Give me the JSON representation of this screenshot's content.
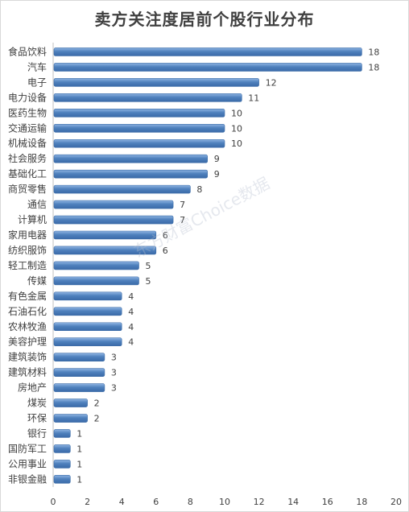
{
  "chart_data": {
    "type": "bar",
    "orientation": "horizontal",
    "title": "卖方关注度居前个股行业分布",
    "categories": [
      "食品饮料",
      "汽车",
      "电子",
      "电力设备",
      "医药生物",
      "交通运输",
      "机械设备",
      "社会服务",
      "基础化工",
      "商贸零售",
      "通信",
      "计算机",
      "家用电器",
      "纺织服饰",
      "轻工制造",
      "传媒",
      "有色金属",
      "石油石化",
      "农林牧渔",
      "美容护理",
      "建筑装饰",
      "建筑材料",
      "房地产",
      "煤炭",
      "环保",
      "银行",
      "国防军工",
      "公用事业",
      "非银金融"
    ],
    "values": [
      18,
      18,
      12,
      11,
      10,
      10,
      10,
      9,
      9,
      8,
      7,
      7,
      6,
      6,
      5,
      5,
      4,
      4,
      4,
      4,
      3,
      3,
      3,
      2,
      2,
      1,
      1,
      1,
      1
    ],
    "xlim": [
      0,
      20
    ],
    "xticks": [
      "0",
      "2",
      "4",
      "6",
      "8",
      "10",
      "12",
      "14",
      "16",
      "18",
      "20"
    ],
    "bar_color": "#4f81bd",
    "grid": false,
    "watermark": "东方财富Choice数据"
  }
}
